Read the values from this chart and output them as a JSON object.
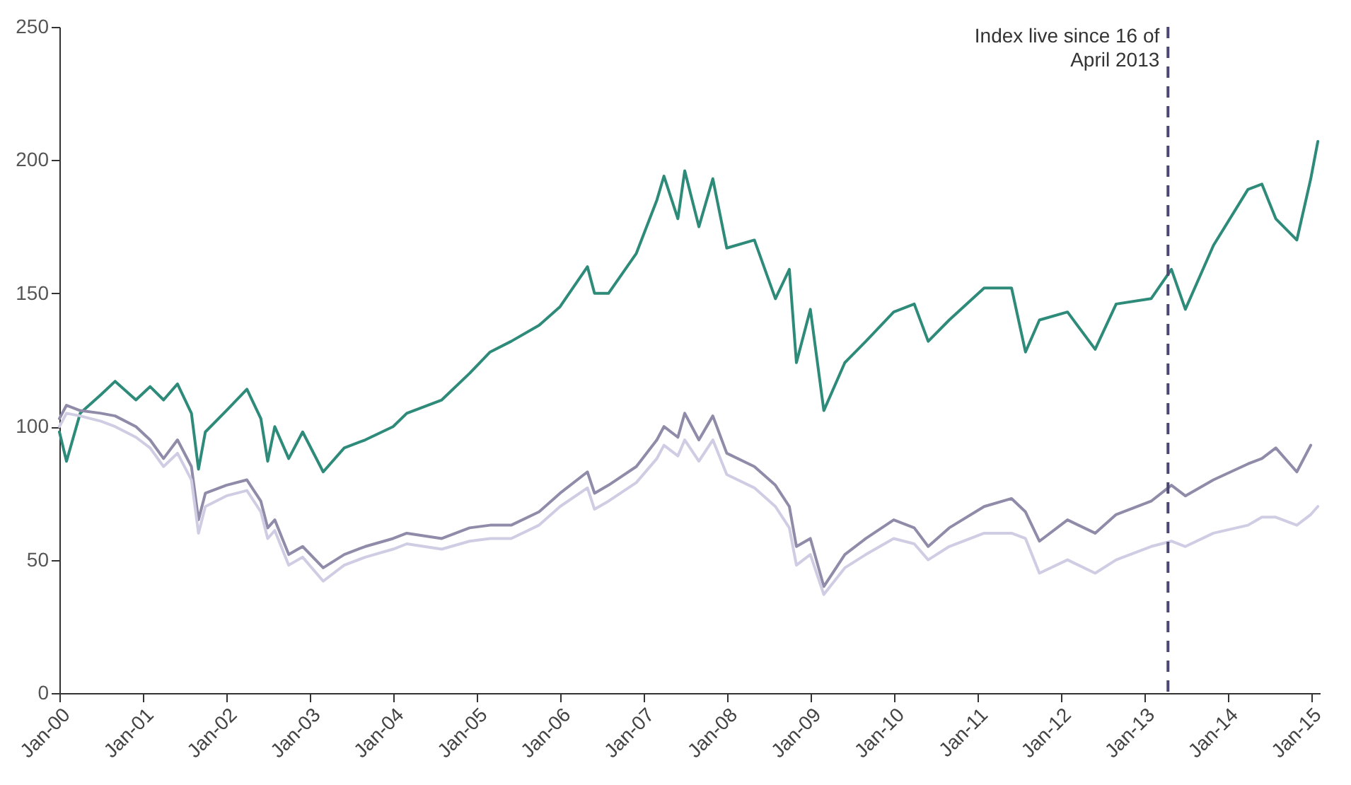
{
  "chart_data": {
    "type": "line",
    "x": [
      "2000-01",
      "2000-02",
      "2000-04",
      "2000-07",
      "2000-09",
      "2000-12",
      "2001-02",
      "2001-04",
      "2001-06",
      "2001-08",
      "2001-09",
      "2001-10",
      "2002-01",
      "2002-04",
      "2002-06",
      "2002-07",
      "2002-08",
      "2002-10",
      "2002-12",
      "2003-03",
      "2003-06",
      "2003-09",
      "2004-01",
      "2004-03",
      "2004-08",
      "2004-12",
      "2005-03",
      "2005-06",
      "2005-10",
      "2006-01",
      "2006-05",
      "2006-06",
      "2006-08",
      "2006-12",
      "2007-03",
      "2007-04",
      "2007-06",
      "2007-07",
      "2007-09",
      "2007-11",
      "2008-01",
      "2008-05",
      "2008-08",
      "2008-10",
      "2008-11",
      "2009-01",
      "2009-03",
      "2009-06",
      "2009-09",
      "2010-01",
      "2010-04",
      "2010-06",
      "2010-09",
      "2011-02",
      "2011-06",
      "2011-08",
      "2011-10",
      "2012-02",
      "2012-06",
      "2012-09",
      "2013-02",
      "2013-05",
      "2013-07",
      "2013-11",
      "2014-04",
      "2014-06",
      "2014-08",
      "2014-11",
      "2015-01",
      "2015-02"
    ],
    "series": [
      {
        "color": "#2e8b7a",
        "values": [
          98,
          87,
          105,
          112,
          117,
          110,
          115,
          110,
          116,
          105,
          84,
          98,
          106,
          114,
          103,
          87,
          100,
          88,
          98,
          83,
          92,
          95,
          100,
          105,
          110,
          120,
          128,
          132,
          138,
          145,
          160,
          150,
          150,
          165,
          185,
          194,
          178,
          196,
          175,
          193,
          167,
          170,
          148,
          159,
          124,
          144,
          106,
          124,
          132,
          143,
          146,
          132,
          140,
          152,
          152,
          128,
          140,
          143,
          129,
          146,
          148,
          159,
          144,
          168,
          189,
          191,
          178,
          170,
          193,
          207
        ]
      },
      {
        "color": "#8f8ba8",
        "values": [
          103,
          108,
          106,
          105,
          104,
          100,
          95,
          88,
          95,
          85,
          65,
          75,
          78,
          80,
          72,
          62,
          65,
          52,
          55,
          47,
          52,
          55,
          58,
          60,
          58,
          62,
          63,
          63,
          68,
          75,
          83,
          75,
          78,
          85,
          95,
          100,
          96,
          105,
          95,
          104,
          90,
          85,
          78,
          70,
          55,
          58,
          40,
          52,
          58,
          65,
          62,
          55,
          62,
          70,
          73,
          68,
          57,
          65,
          60,
          67,
          72,
          78,
          74,
          80,
          86,
          88,
          92,
          83,
          93,
          null
        ]
      },
      {
        "color": "#cfcde3",
        "values": [
          100,
          105,
          104,
          102,
          100,
          96,
          92,
          85,
          90,
          80,
          60,
          70,
          74,
          76,
          68,
          58,
          61,
          48,
          51,
          42,
          48,
          51,
          54,
          56,
          54,
          57,
          58,
          58,
          63,
          70,
          77,
          69,
          72,
          79,
          88,
          93,
          89,
          95,
          87,
          95,
          82,
          77,
          70,
          62,
          48,
          52,
          37,
          47,
          52,
          58,
          56,
          50,
          55,
          60,
          60,
          58,
          45,
          50,
          45,
          50,
          55,
          57,
          55,
          60,
          63,
          66,
          66,
          63,
          67,
          70
        ]
      }
    ],
    "xlim": [
      "2000-01-01",
      "2015-02-10"
    ],
    "xticks": [
      {
        "value": "2000-01",
        "label": "Jan-00"
      },
      {
        "value": "2001-01",
        "label": "Jan-01"
      },
      {
        "value": "2002-01",
        "label": "Jan-02"
      },
      {
        "value": "2003-01",
        "label": "Jan-03"
      },
      {
        "value": "2004-01",
        "label": "Jan-04"
      },
      {
        "value": "2005-01",
        "label": "Jan-05"
      },
      {
        "value": "2006-01",
        "label": "Jan-06"
      },
      {
        "value": "2007-01",
        "label": "Jan-07"
      },
      {
        "value": "2008-01",
        "label": "Jan-08"
      },
      {
        "value": "2009-01",
        "label": "Jan-09"
      },
      {
        "value": "2010-01",
        "label": "Jan-10"
      },
      {
        "value": "2011-01",
        "label": "Jan-11"
      },
      {
        "value": "2012-01",
        "label": "Jan-12"
      },
      {
        "value": "2013-01",
        "label": "Jan-13"
      },
      {
        "value": "2014-01",
        "label": "Jan-14"
      },
      {
        "value": "2015-01",
        "label": "Jan-15"
      }
    ],
    "ylim": [
      0,
      250
    ],
    "yticks": [
      0,
      50,
      100,
      150,
      200,
      250
    ],
    "ref_lines": [
      {
        "axis": "x",
        "value": "2013-04-16",
        "label": "Index live since 16 of April 2013",
        "color": "#4a4870",
        "line_style": "dashed"
      }
    ],
    "marker": "none",
    "line_style": "solid",
    "grid": false
  }
}
